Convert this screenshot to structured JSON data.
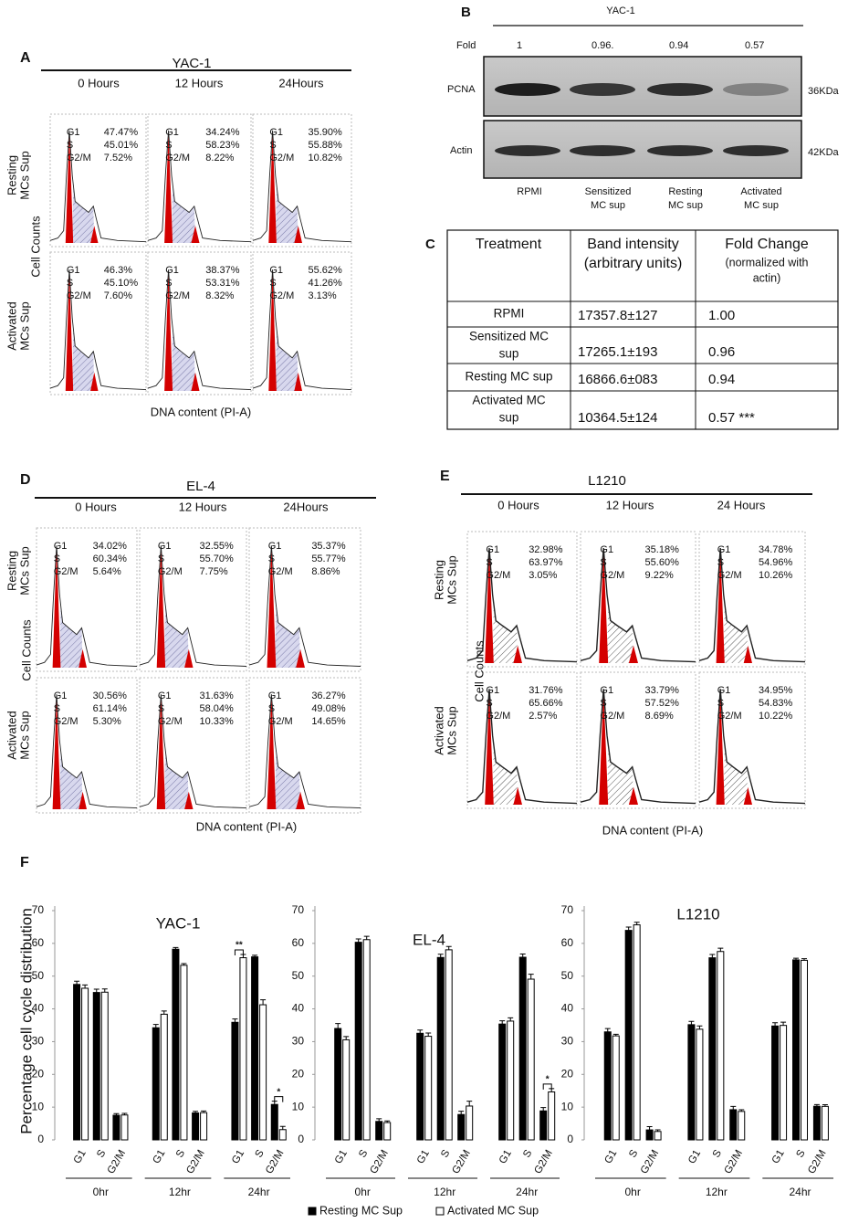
{
  "panels": {
    "A": {
      "label": "A",
      "title": "YAC-1",
      "columns": [
        "0 Hours",
        "12 Hours",
        "24Hours"
      ],
      "row_labels": [
        [
          "Resting",
          "MCs Sup"
        ],
        [
          "Activated",
          "MCs Sup"
        ]
      ],
      "y_label": "Cell Counts",
      "x_label": "DNA content (PI-A)",
      "histograms": [
        [
          [
            [
              "G1",
              "47.47%"
            ],
            [
              "S",
              "45.01%"
            ],
            [
              "G2/M",
              "7.52%"
            ]
          ],
          [
            [
              "G1",
              "34.24%"
            ],
            [
              "S",
              "58.23%"
            ],
            [
              "G2/M",
              "8.22%"
            ]
          ],
          [
            [
              "G1",
              "35.90%"
            ],
            [
              "S",
              "55.88%"
            ],
            [
              "G2/M",
              "10.82%"
            ]
          ]
        ],
        [
          [
            [
              "G1",
              "46.3%"
            ],
            [
              "S",
              "45.10%"
            ],
            [
              "G2/M",
              "7.60%"
            ]
          ],
          [
            [
              "G1",
              "38.37%"
            ],
            [
              "S",
              "53.31%"
            ],
            [
              "G2/M",
              "8.32%"
            ]
          ],
          [
            [
              "G1",
              "55.62%"
            ],
            [
              "S",
              "41.26%"
            ],
            [
              "G2/M",
              "3.13%"
            ]
          ]
        ]
      ]
    },
    "B": {
      "label": "B",
      "title": "YAC-1",
      "fold_label": "Fold",
      "folds": [
        "1",
        "0.96.",
        "0.94",
        "0.57"
      ],
      "rows": [
        "PCNA",
        "Actin"
      ],
      "sizes": [
        "36KDa",
        "42KDa"
      ],
      "lanes": [
        [
          "RPMI"
        ],
        [
          "Sensitized",
          "MC sup"
        ],
        [
          "Resting",
          "MC sup"
        ],
        [
          "Activated",
          "MC sup"
        ]
      ]
    },
    "C": {
      "label": "C",
      "header": [
        [
          "Treatment"
        ],
        [
          "Band intensity",
          "(arbitrary units)"
        ],
        [
          "Fold Change",
          "(normalized with",
          "actin)"
        ]
      ],
      "rows": [
        [
          [
            "RPMI"
          ],
          [
            "17357.8±127"
          ],
          [
            "1.00"
          ]
        ],
        [
          [
            "Sensitized MC",
            "sup"
          ],
          [
            "17265.1±193"
          ],
          [
            "0.96"
          ]
        ],
        [
          [
            "Resting MC sup"
          ],
          [
            "16866.6±083"
          ],
          [
            "0.94"
          ]
        ],
        [
          [
            "Activated MC",
            "sup"
          ],
          [
            "10364.5±124"
          ],
          [
            "0.57 ***"
          ]
        ]
      ]
    },
    "D": {
      "label": "D",
      "title": "EL-4",
      "columns": [
        "0 Hours",
        "12 Hours",
        "24Hours"
      ],
      "row_labels": [
        [
          "Resting",
          "MCs Sup"
        ],
        [
          "Activated",
          "MCs Sup"
        ]
      ],
      "y_label": "Cell Counts",
      "x_label": "DNA content (PI-A)",
      "histograms": [
        [
          [
            [
              "G1",
              "34.02%"
            ],
            [
              "S",
              "60.34%"
            ],
            [
              "G2/M",
              "5.64%"
            ]
          ],
          [
            [
              "G1",
              "32.55%"
            ],
            [
              "S",
              "55.70%"
            ],
            [
              "G2/M",
              "7.75%"
            ]
          ],
          [
            [
              "G1",
              "35.37%"
            ],
            [
              "S",
              "55.77%"
            ],
            [
              "G2/M",
              "8.86%"
            ]
          ]
        ],
        [
          [
            [
              "G1",
              "30.56%"
            ],
            [
              "S",
              "61.14%"
            ],
            [
              "G2/M",
              "5.30%"
            ]
          ],
          [
            [
              "G1",
              "31.63%"
            ],
            [
              "S",
              "58.04%"
            ],
            [
              "G2/M",
              "10.33%"
            ]
          ],
          [
            [
              "G1",
              "36.27%"
            ],
            [
              "S",
              "49.08%"
            ],
            [
              "G2/M",
              "14.65%"
            ]
          ]
        ]
      ]
    },
    "E": {
      "label": "E",
      "title": "L1210",
      "columns": [
        "0 Hours",
        "12 Hours",
        "24 Hours"
      ],
      "row_labels": [
        [
          "Resting",
          "MCs Sup"
        ],
        [
          "Activated",
          "MCs Sup"
        ]
      ],
      "y_label": "Cell Counts",
      "x_label": "DNA content (PI-A)",
      "histograms": [
        [
          [
            [
              "G1",
              "32.98%"
            ],
            [
              "S",
              "63.97%"
            ],
            [
              "G2/M",
              "3.05%"
            ]
          ],
          [
            [
              "G1",
              "35.18%"
            ],
            [
              "S",
              "55.60%"
            ],
            [
              "G2/M",
              "9.22%"
            ]
          ],
          [
            [
              "G1",
              "34.78%"
            ],
            [
              "S",
              "54.96%"
            ],
            [
              "G2/M",
              "10.26%"
            ]
          ]
        ],
        [
          [
            [
              "G1",
              "31.76%"
            ],
            [
              "S",
              "65.66%"
            ],
            [
              "G2/M",
              "2.57%"
            ]
          ],
          [
            [
              "G1",
              "33.79%"
            ],
            [
              "S",
              "57.52%"
            ],
            [
              "G2/M",
              "8.69%"
            ]
          ],
          [
            [
              "G1",
              "34.95%"
            ],
            [
              "S",
              "54.83%"
            ],
            [
              "G2/M",
              "10.22%"
            ]
          ]
        ]
      ]
    },
    "F": {
      "label": "F"
    }
  },
  "chart_data": [
    {
      "type": "bar",
      "title": "YAC-1",
      "y_label": "Percentage cell cycle distribution",
      "categories": [
        "G1",
        "S",
        "G2/M",
        "G1",
        "S",
        "G2/M",
        "G1",
        "S",
        "G2/M"
      ],
      "groups": [
        "0hr",
        "12hr",
        "24hr"
      ],
      "series": [
        {
          "name": "Resting MC Sup",
          "color": "#000000",
          "values": [
            47.47,
            45.01,
            7.52,
            34.24,
            58.23,
            8.22,
            35.9,
            55.88,
            10.82
          ],
          "errors": [
            1,
            1,
            0.5,
            1,
            0.5,
            0.5,
            1,
            0.5,
            1
          ]
        },
        {
          "name": "Activated MC Sup",
          "color": "#ffffff",
          "values": [
            46.3,
            45.1,
            7.6,
            38.37,
            53.31,
            8.32,
            55.62,
            41.26,
            3.13
          ],
          "errors": [
            1,
            1,
            0.5,
            1,
            0.5,
            0.5,
            1,
            1.5,
            1
          ]
        }
      ],
      "annotations": [
        {
          "text": "**",
          "group": "24hr",
          "category": "G1"
        },
        {
          "text": "*",
          "group": "24hr",
          "category": "G2/M"
        }
      ],
      "ylim": [
        0,
        70
      ],
      "yticks": [
        0,
        10,
        20,
        30,
        40,
        50,
        60,
        70
      ]
    },
    {
      "type": "bar",
      "title": "EL-4",
      "categories": [
        "G1",
        "S",
        "G2/M",
        "G1",
        "S",
        "G2/M",
        "G1",
        "S",
        "G2/M"
      ],
      "groups": [
        "0hr",
        "12hr",
        "24hr"
      ],
      "series": [
        {
          "name": "Resting MC Sup",
          "color": "#000000",
          "values": [
            34.02,
            60.34,
            5.64,
            32.55,
            55.7,
            7.75,
            35.37,
            55.77,
            8.86
          ],
          "errors": [
            1.5,
            1,
            0.8,
            1,
            1,
            1,
            1,
            1,
            1
          ]
        },
        {
          "name": "Activated MC Sup",
          "color": "#ffffff",
          "values": [
            30.56,
            61.14,
            5.3,
            31.63,
            58.04,
            10.33,
            36.27,
            49.08,
            14.65
          ],
          "errors": [
            1,
            1,
            0.5,
            1,
            1,
            1.5,
            1,
            1.5,
            1
          ]
        }
      ],
      "annotations": [
        {
          "text": "*",
          "group": "24hr",
          "category": "G2/M"
        }
      ],
      "ylim": [
        0,
        70
      ],
      "yticks": [
        0,
        10,
        20,
        30,
        40,
        50,
        60,
        70
      ]
    },
    {
      "type": "bar",
      "title": "L1210",
      "categories": [
        "G1",
        "S",
        "G2/M",
        "G1",
        "S",
        "G2/M",
        "G1",
        "S",
        "G2/M"
      ],
      "groups": [
        "0hr",
        "12hr",
        "24hr"
      ],
      "series": [
        {
          "name": "Resting MC Sup",
          "color": "#000000",
          "values": [
            32.98,
            63.97,
            3.05,
            35.18,
            55.6,
            9.22,
            34.78,
            54.96,
            10.26
          ],
          "errors": [
            1,
            1,
            1,
            1,
            1,
            1,
            1,
            0.5,
            0.5
          ]
        },
        {
          "name": "Activated MC Sup",
          "color": "#ffffff",
          "values": [
            31.76,
            65.66,
            2.57,
            33.79,
            57.52,
            8.69,
            34.95,
            54.83,
            10.22
          ],
          "errors": [
            0.5,
            0.8,
            0.5,
            1,
            1,
            0.5,
            1,
            0.5,
            0.5
          ]
        }
      ],
      "annotations": [],
      "ylim": [
        0,
        70
      ],
      "yticks": [
        0,
        10,
        20,
        30,
        40,
        50,
        60,
        70
      ]
    }
  ]
}
